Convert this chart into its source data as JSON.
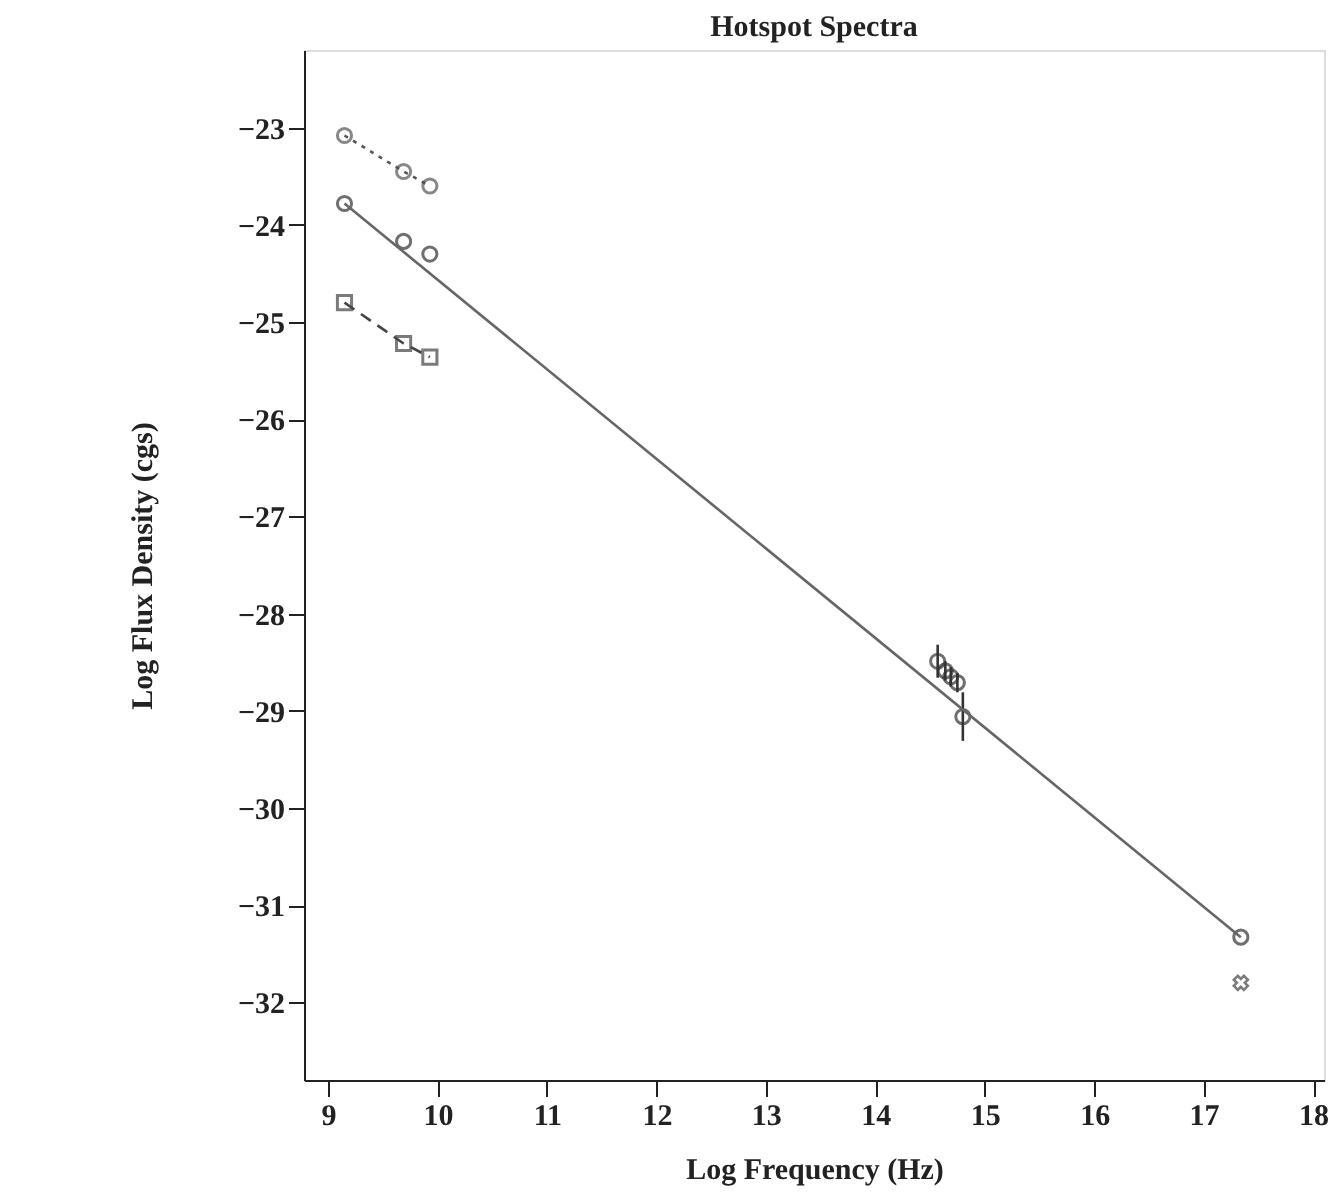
{
  "chart_data": {
    "type": "scatter",
    "title": "Hotspot Spectra",
    "xlabel": "Log Frequency (Hz)",
    "ylabel": "Log Flux Density (cgs)",
    "xlim": [
      8.78,
      18.1
    ],
    "xticks": [
      9,
      10,
      11,
      12,
      13,
      14,
      15,
      16,
      17,
      18
    ],
    "ylim": [
      -32.8,
      -22.2
    ],
    "yticks": [
      -23,
      -24,
      -25,
      -26,
      -27,
      -28,
      -29,
      -30,
      -31,
      -32
    ],
    "grid": false,
    "series": [
      {
        "type": "line",
        "color": "#555555",
        "marker": "circle",
        "line_style": "dotted",
        "x": [
          9.15,
          9.69,
          9.93
        ],
        "values": [
          -23.08,
          -23.45,
          -23.6
        ]
      },
      {
        "color": "#333333",
        "marker": "circle",
        "x": [
          9.15,
          9.69,
          9.93,
          14.57,
          14.64,
          14.69,
          14.75,
          14.8,
          17.34
        ],
        "values": [
          -23.78,
          -24.17,
          -24.3,
          -28.49,
          -28.59,
          -28.65,
          -28.71,
          -29.06,
          -31.33
        ],
        "errors": [
          null,
          null,
          null,
          0.17,
          0.1,
          0.1,
          0.1,
          0.25,
          null
        ]
      },
      {
        "type": "line",
        "color": "#444444",
        "marker": "square",
        "line_style": "dashed",
        "x": [
          9.15,
          9.69,
          9.93
        ],
        "values": [
          -24.8,
          -25.22,
          -25.36
        ]
      },
      {
        "color": "#444444",
        "marker": "cross",
        "x": [
          17.34
        ],
        "values": [
          -31.8
        ]
      },
      {
        "type": "line",
        "color": "#666666",
        "marker": "none",
        "line_style": "solid",
        "x": [
          9.15,
          17.34
        ],
        "values": [
          -23.78,
          -31.33
        ]
      }
    ]
  }
}
